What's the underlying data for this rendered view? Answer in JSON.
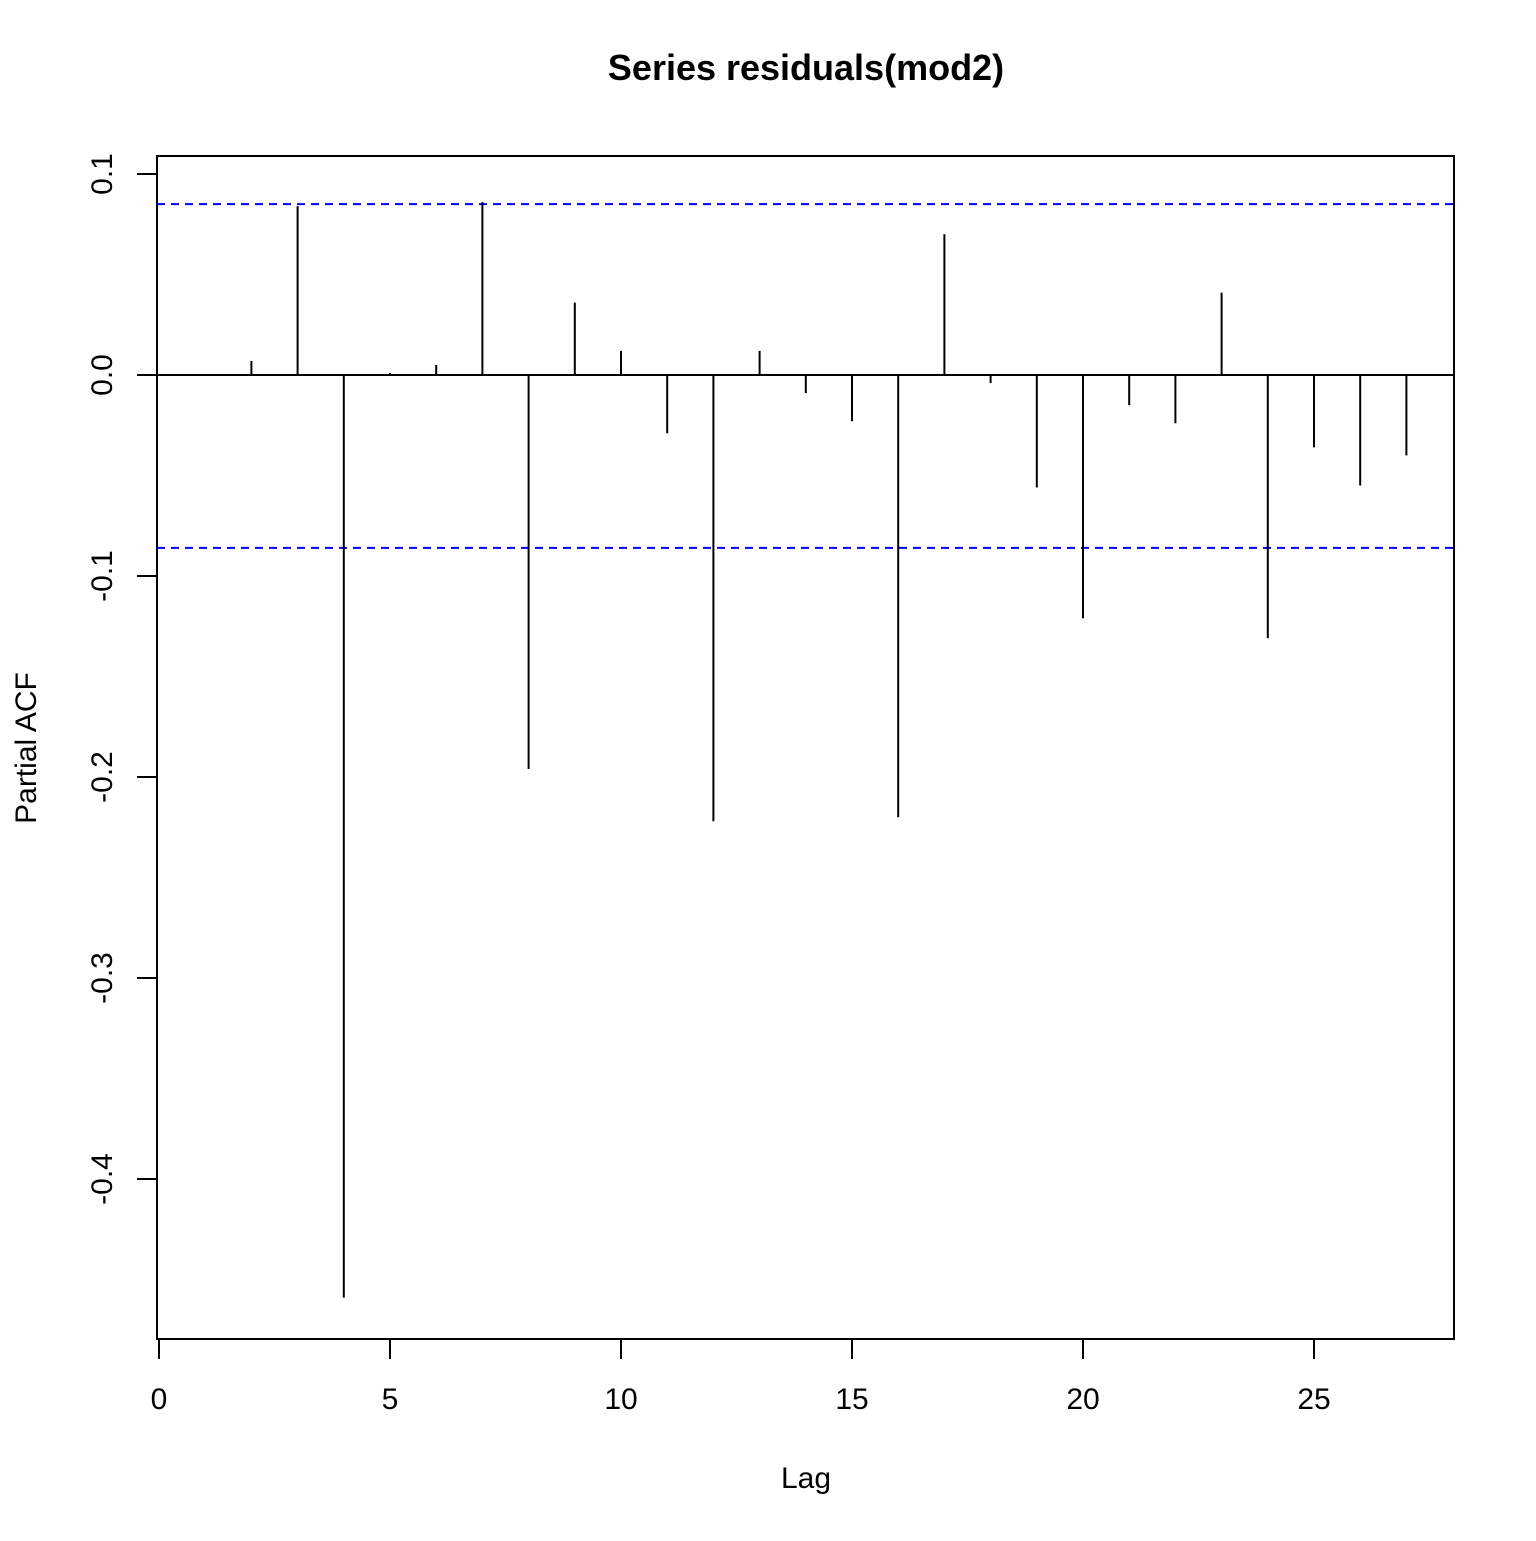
{
  "chart_data": {
    "type": "bar",
    "title": "Series  residuals(mod2)",
    "xlabel": "Lag",
    "ylabel": "Partial ACF",
    "xlim": [
      0,
      28
    ],
    "ylim": [
      -0.47,
      0.1
    ],
    "x_ticks": [
      0,
      5,
      10,
      15,
      20,
      25
    ],
    "y_ticks": [
      -0.4,
      -0.3,
      -0.2,
      -0.1,
      0.0,
      0.1
    ],
    "x_tick_labels": [
      "0",
      "5",
      "10",
      "15",
      "20",
      "25"
    ],
    "y_tick_labels": [
      "-0.4",
      "-0.3",
      "-0.2",
      "-0.1",
      "0.0",
      "0.1"
    ],
    "lags": [
      1,
      2,
      3,
      4,
      5,
      6,
      7,
      8,
      9,
      10,
      11,
      12,
      13,
      14,
      15,
      16,
      17,
      18,
      19,
      20,
      21,
      22,
      23,
      24,
      25,
      26,
      27
    ],
    "values": [
      0.0,
      0.007,
      0.084,
      -0.459,
      0.001,
      0.005,
      0.086,
      -0.196,
      0.036,
      0.012,
      -0.029,
      -0.222,
      0.012,
      -0.009,
      -0.023,
      -0.22,
      0.07,
      -0.004,
      -0.056,
      -0.121,
      -0.015,
      -0.024,
      0.041,
      -0.131,
      -0.036,
      -0.055,
      -0.04
    ],
    "confidence_limits": [
      0.085,
      -0.086
    ],
    "confidence_line_color": "#0000ff",
    "bar_color": "#000000",
    "grid": false,
    "legend": "none"
  }
}
